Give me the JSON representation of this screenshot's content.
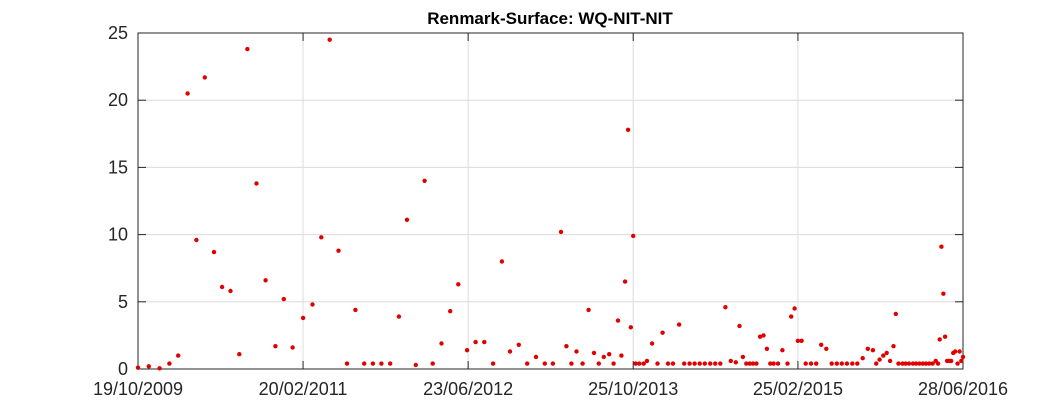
{
  "chart_data": {
    "type": "scatter",
    "title": "Renmark-Surface: WQ-NIT-NIT",
    "xlabel": "",
    "ylabel": "",
    "x_axis": {
      "type": "date",
      "range": [
        "2009-10-19",
        "2016-06-28"
      ],
      "ticks": [
        {
          "date": "2009-10-19",
          "label": "19/10/2009"
        },
        {
          "date": "2011-02-20",
          "label": "20/02/2011"
        },
        {
          "date": "2012-06-23",
          "label": "23/06/2012"
        },
        {
          "date": "2013-10-25",
          "label": "25/10/2013"
        },
        {
          "date": "2015-02-25",
          "label": "25/02/2015"
        },
        {
          "date": "2016-06-28",
          "label": "28/06/2016"
        }
      ]
    },
    "y_axis": {
      "range": [
        0,
        25
      ],
      "ticks": [
        0,
        5,
        10,
        15,
        20,
        25
      ]
    },
    "grid": true,
    "marker_color": "#e00000",
    "points": [
      [
        "2009-10-19",
        0.1
      ],
      [
        "2009-11-20",
        0.2
      ],
      [
        "2009-12-22",
        0.05
      ],
      [
        "2010-01-20",
        0.4
      ],
      [
        "2010-02-15",
        1.0
      ],
      [
        "2010-03-15",
        20.5
      ],
      [
        "2010-04-10",
        9.6
      ],
      [
        "2010-05-05",
        21.7
      ],
      [
        "2010-06-01",
        8.7
      ],
      [
        "2010-06-25",
        6.1
      ],
      [
        "2010-07-20",
        5.8
      ],
      [
        "2010-08-15",
        1.1
      ],
      [
        "2010-09-08",
        23.8
      ],
      [
        "2010-10-05",
        13.8
      ],
      [
        "2010-11-01",
        6.6
      ],
      [
        "2010-11-30",
        1.7
      ],
      [
        "2010-12-25",
        5.2
      ],
      [
        "2011-01-20",
        1.6
      ],
      [
        "2011-02-20",
        3.8
      ],
      [
        "2011-03-20",
        4.8
      ],
      [
        "2011-04-15",
        9.8
      ],
      [
        "2011-05-10",
        24.5
      ],
      [
        "2011-06-05",
        8.8
      ],
      [
        "2011-06-30",
        0.4
      ],
      [
        "2011-07-25",
        4.4
      ],
      [
        "2011-08-20",
        0.4
      ],
      [
        "2011-09-15",
        0.4
      ],
      [
        "2011-10-10",
        0.4
      ],
      [
        "2011-11-05",
        0.4
      ],
      [
        "2011-12-01",
        3.9
      ],
      [
        "2011-12-25",
        11.1
      ],
      [
        "2012-01-20",
        0.3
      ],
      [
        "2012-02-15",
        14.0
      ],
      [
        "2012-03-10",
        0.4
      ],
      [
        "2012-04-05",
        1.9
      ],
      [
        "2012-05-01",
        4.3
      ],
      [
        "2012-05-25",
        6.3
      ],
      [
        "2012-06-20",
        1.4
      ],
      [
        "2012-07-15",
        2.0
      ],
      [
        "2012-08-10",
        2.0
      ],
      [
        "2012-09-05",
        0.4
      ],
      [
        "2012-10-01",
        8.0
      ],
      [
        "2012-10-25",
        1.3
      ],
      [
        "2012-11-20",
        1.8
      ],
      [
        "2012-12-15",
        0.4
      ],
      [
        "2013-01-10",
        0.9
      ],
      [
        "2013-02-05",
        0.4
      ],
      [
        "2013-03-01",
        0.4
      ],
      [
        "2013-03-25",
        10.2
      ],
      [
        "2013-04-10",
        1.7
      ],
      [
        "2013-04-25",
        0.4
      ],
      [
        "2013-05-10",
        1.3
      ],
      [
        "2013-05-28",
        0.4
      ],
      [
        "2013-06-15",
        4.4
      ],
      [
        "2013-07-01",
        1.2
      ],
      [
        "2013-07-15",
        0.4
      ],
      [
        "2013-07-30",
        0.9
      ],
      [
        "2013-08-15",
        1.1
      ],
      [
        "2013-08-28",
        0.4
      ],
      [
        "2013-09-10",
        3.6
      ],
      [
        "2013-09-20",
        1.0
      ],
      [
        "2013-10-01",
        6.5
      ],
      [
        "2013-10-10",
        17.8
      ],
      [
        "2013-10-18",
        3.1
      ],
      [
        "2013-10-25",
        9.9
      ],
      [
        "2013-11-01",
        0.4
      ],
      [
        "2013-11-12",
        0.4
      ],
      [
        "2013-11-25",
        0.4
      ],
      [
        "2013-12-05",
        0.6
      ],
      [
        "2013-12-20",
        1.9
      ],
      [
        "2014-01-05",
        0.4
      ],
      [
        "2014-01-20",
        2.7
      ],
      [
        "2014-02-05",
        0.4
      ],
      [
        "2014-02-20",
        0.4
      ],
      [
        "2014-03-10",
        3.3
      ],
      [
        "2014-03-25",
        0.4
      ],
      [
        "2014-04-10",
        0.4
      ],
      [
        "2014-04-25",
        0.4
      ],
      [
        "2014-05-10",
        0.4
      ],
      [
        "2014-05-25",
        0.4
      ],
      [
        "2014-06-10",
        0.4
      ],
      [
        "2014-06-25",
        0.4
      ],
      [
        "2014-07-10",
        0.4
      ],
      [
        "2014-07-25",
        4.6
      ],
      [
        "2014-08-10",
        0.6
      ],
      [
        "2014-08-25",
        0.5
      ],
      [
        "2014-09-05",
        3.2
      ],
      [
        "2014-09-15",
        0.9
      ],
      [
        "2014-09-25",
        0.4
      ],
      [
        "2014-10-05",
        0.4
      ],
      [
        "2014-10-15",
        0.4
      ],
      [
        "2014-10-25",
        0.4
      ],
      [
        "2014-11-05",
        2.4
      ],
      [
        "2014-11-15",
        2.5
      ],
      [
        "2014-11-25",
        1.5
      ],
      [
        "2014-12-05",
        0.4
      ],
      [
        "2014-12-15",
        0.4
      ],
      [
        "2014-12-28",
        0.4
      ],
      [
        "2015-01-10",
        1.4
      ],
      [
        "2015-01-25",
        0.4
      ],
      [
        "2015-02-05",
        3.9
      ],
      [
        "2015-02-15",
        4.5
      ],
      [
        "2015-02-25",
        2.1
      ],
      [
        "2015-03-08",
        2.1
      ],
      [
        "2015-03-20",
        0.4
      ],
      [
        "2015-04-05",
        0.4
      ],
      [
        "2015-04-20",
        0.4
      ],
      [
        "2015-05-05",
        1.8
      ],
      [
        "2015-05-20",
        1.5
      ],
      [
        "2015-06-05",
        0.4
      ],
      [
        "2015-06-20",
        0.4
      ],
      [
        "2015-07-05",
        0.4
      ],
      [
        "2015-07-20",
        0.4
      ],
      [
        "2015-08-05",
        0.4
      ],
      [
        "2015-08-20",
        0.4
      ],
      [
        "2015-09-05",
        0.8
      ],
      [
        "2015-09-20",
        1.5
      ],
      [
        "2015-10-05",
        1.4
      ],
      [
        "2015-10-15",
        0.4
      ],
      [
        "2015-10-25",
        0.7
      ],
      [
        "2015-11-05",
        1.0
      ],
      [
        "2015-11-15",
        1.2
      ],
      [
        "2015-11-25",
        0.6
      ],
      [
        "2015-12-05",
        1.7
      ],
      [
        "2015-12-12",
        4.1
      ],
      [
        "2015-12-20",
        0.4
      ],
      [
        "2016-01-01",
        0.4
      ],
      [
        "2016-01-10",
        0.4
      ],
      [
        "2016-01-20",
        0.4
      ],
      [
        "2016-02-01",
        0.4
      ],
      [
        "2016-02-10",
        0.4
      ],
      [
        "2016-02-20",
        0.4
      ],
      [
        "2016-03-01",
        0.4
      ],
      [
        "2016-03-10",
        0.4
      ],
      [
        "2016-03-20",
        0.4
      ],
      [
        "2016-03-30",
        0.4
      ],
      [
        "2016-04-08",
        0.6
      ],
      [
        "2016-04-15",
        0.4
      ],
      [
        "2016-04-20",
        2.2
      ],
      [
        "2016-04-25",
        9.1
      ],
      [
        "2016-05-01",
        5.6
      ],
      [
        "2016-05-06",
        2.4
      ],
      [
        "2016-05-12",
        0.6
      ],
      [
        "2016-05-18",
        0.6
      ],
      [
        "2016-05-24",
        0.6
      ],
      [
        "2016-05-30",
        1.2
      ],
      [
        "2016-06-05",
        1.3
      ],
      [
        "2016-06-12",
        0.4
      ],
      [
        "2016-06-18",
        1.3
      ],
      [
        "2016-06-23",
        0.6
      ],
      [
        "2016-06-28",
        0.9
      ]
    ]
  }
}
